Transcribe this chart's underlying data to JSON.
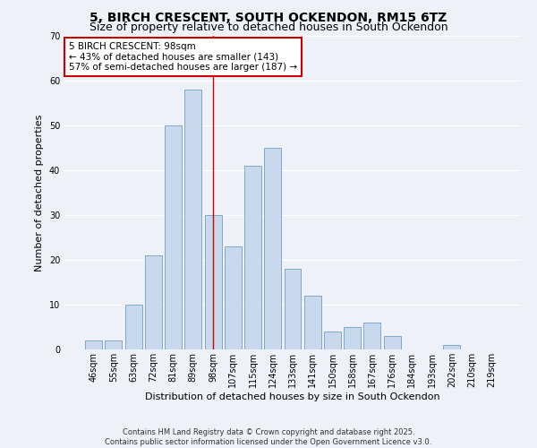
{
  "title": "5, BIRCH CRESCENT, SOUTH OCKENDON, RM15 6TZ",
  "subtitle": "Size of property relative to detached houses in South Ockendon",
  "xlabel": "Distribution of detached houses by size in South Ockendon",
  "ylabel": "Number of detached properties",
  "categories": [
    "46sqm",
    "55sqm",
    "63sqm",
    "72sqm",
    "81sqm",
    "89sqm",
    "98sqm",
    "107sqm",
    "115sqm",
    "124sqm",
    "133sqm",
    "141sqm",
    "150sqm",
    "158sqm",
    "167sqm",
    "176sqm",
    "184sqm",
    "193sqm",
    "202sqm",
    "210sqm",
    "219sqm"
  ],
  "values": [
    2,
    2,
    10,
    21,
    50,
    58,
    30,
    23,
    41,
    45,
    18,
    12,
    4,
    5,
    6,
    3,
    0,
    0,
    1,
    0,
    0
  ],
  "bar_color": "#c9d9ed",
  "bar_edge_color": "#7fa8c9",
  "property_line_idx": 6,
  "annotation_text": "5 BIRCH CRESCENT: 98sqm\n← 43% of detached houses are smaller (143)\n57% of semi-detached houses are larger (187) →",
  "annotation_box_color": "#ffffff",
  "annotation_box_edge": "#cc0000",
  "line_color": "#cc0000",
  "ylim": [
    0,
    70
  ],
  "yticks": [
    0,
    10,
    20,
    30,
    40,
    50,
    60,
    70
  ],
  "background_color": "#eef2f8",
  "grid_color": "#ffffff",
  "footer": "Contains HM Land Registry data © Crown copyright and database right 2025.\nContains public sector information licensed under the Open Government Licence v3.0.",
  "title_fontsize": 10,
  "subtitle_fontsize": 9,
  "axis_label_fontsize": 8,
  "tick_fontsize": 7,
  "footer_fontsize": 6,
  "annotation_fontsize": 7.5
}
